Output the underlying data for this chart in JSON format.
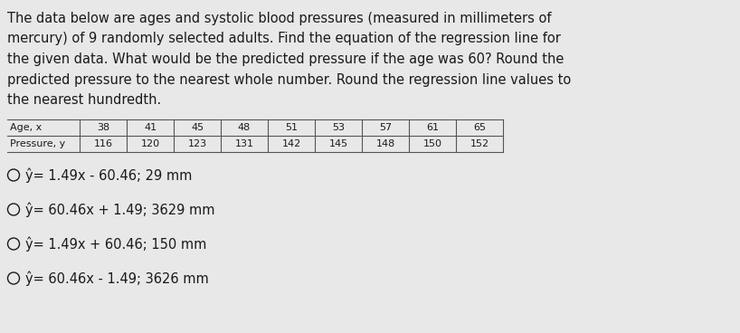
{
  "background_color": "#e8e8e8",
  "paragraph_lines": [
    "The data below are ages and systolic blood pressures (measured in millimeters of",
    "mercury) of 9 randomly selected adults. Find the equation of the regression line for",
    "the given data. What would be the predicted pressure if the age was 60? Round the",
    "predicted pressure to the nearest whole number. Round the regression line values to",
    "the nearest hundredth."
  ],
  "table_headers": [
    "Age, x",
    "38",
    "41",
    "45",
    "48",
    "51",
    "53",
    "57",
    "61",
    "65"
  ],
  "table_row2": [
    "Pressure, y",
    "116",
    "120",
    "123",
    "131",
    "142",
    "145",
    "148",
    "150",
    "152"
  ],
  "options": [
    "ŷ= 1.49x - 60.46; 29 mm",
    "ŷ= 60.46x + 1.49; 3629 mm",
    "ŷ= 1.49x + 60.46; 150 mm",
    "ŷ= 60.46x - 1.49; 3626 mm"
  ],
  "font_size_para": 10.5,
  "font_size_table": 8.0,
  "font_size_options": 10.5,
  "text_color": "#1a1a1a",
  "table_line_color": "#555555"
}
